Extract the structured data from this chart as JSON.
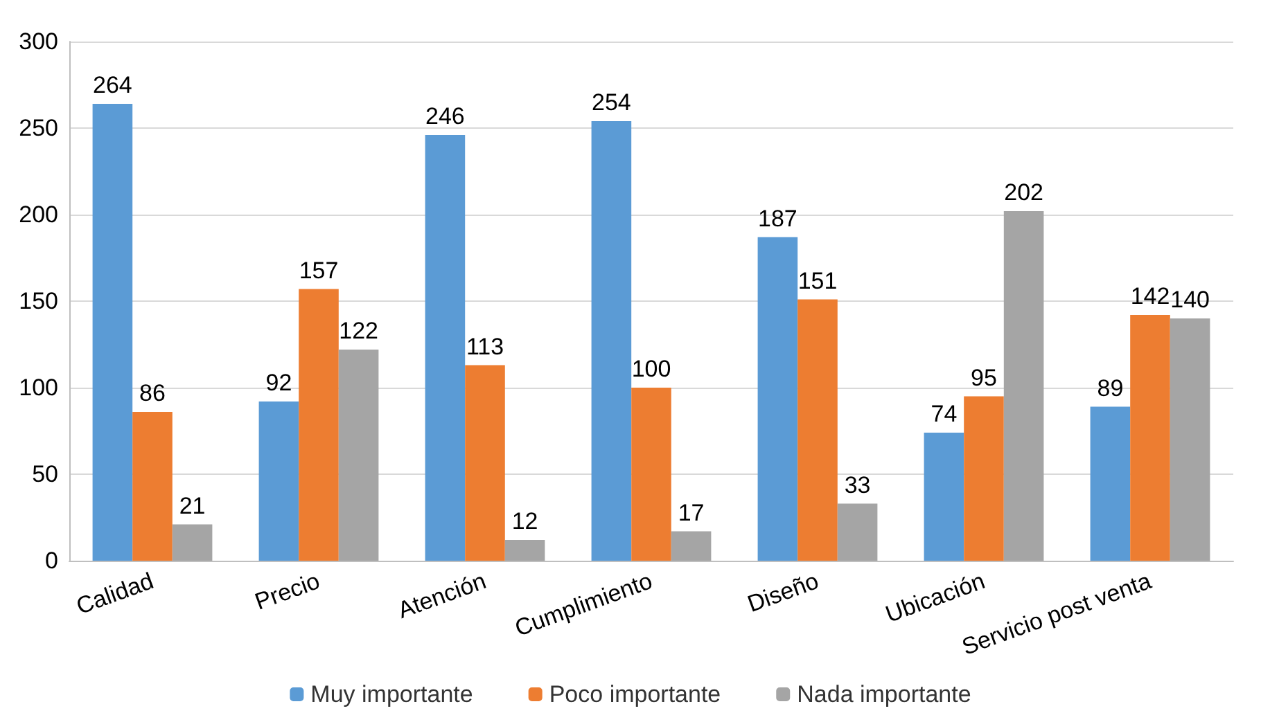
{
  "chart_data": {
    "type": "bar",
    "categories": [
      "Calidad",
      "Precio",
      "Atención",
      "Cumplimiento",
      "Diseño",
      "Ubicación",
      "Servicio post venta"
    ],
    "series": [
      {
        "name": "Muy importante",
        "color": "#5b9bd5",
        "values": [
          264,
          92,
          246,
          254,
          187,
          74,
          89
        ]
      },
      {
        "name": "Poco importante",
        "color": "#ed7d31",
        "values": [
          86,
          157,
          113,
          100,
          151,
          95,
          142
        ]
      },
      {
        "name": "Nada importante",
        "color": "#a5a5a5",
        "values": [
          21,
          122,
          12,
          17,
          33,
          202,
          140
        ]
      }
    ],
    "ylim": [
      0,
      300
    ],
    "yticks": [
      0,
      50,
      100,
      150,
      200,
      250,
      300
    ],
    "grid": "y",
    "legend": "bottom",
    "data_labels": true
  }
}
